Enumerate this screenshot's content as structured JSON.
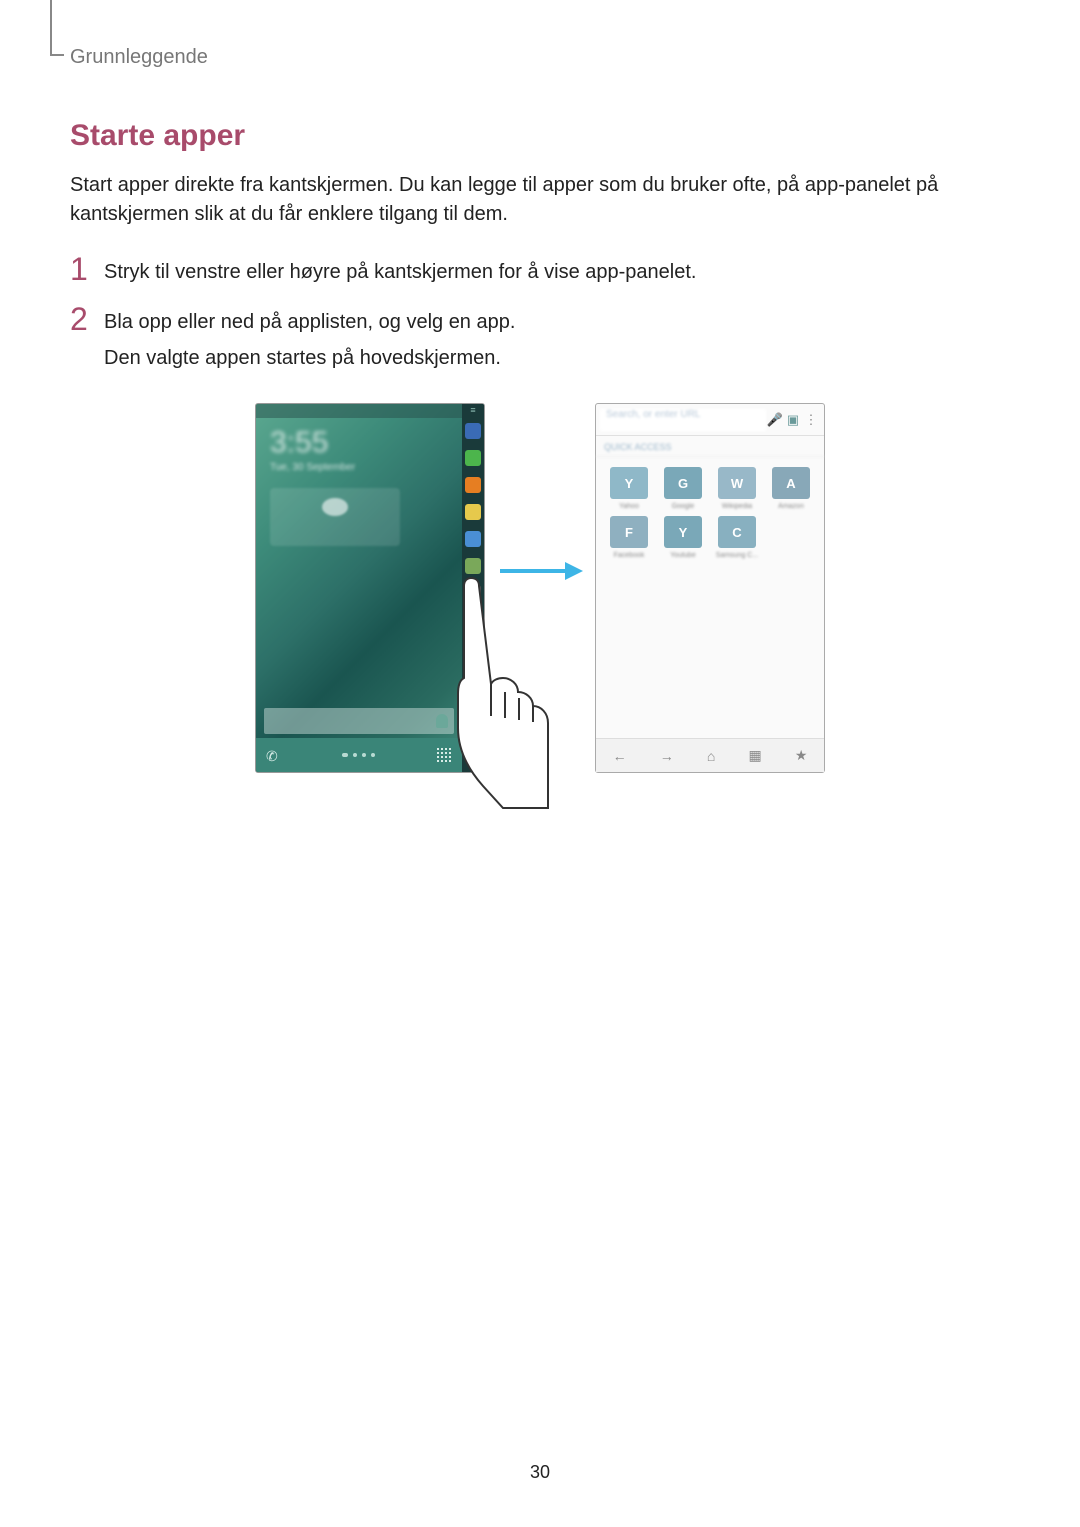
{
  "breadcrumb": "Grunnleggende",
  "title": "Starte apper",
  "intro": "Start apper direkte fra kantskjermen. Du kan legge til apper som du bruker ofte, på app-panelet på kantskjermen slik at du får enklere tilgang til dem.",
  "steps": [
    {
      "num": "1",
      "lines": [
        "Stryk til venstre eller høyre på kantskjermen for å vise app-panelet."
      ]
    },
    {
      "num": "2",
      "lines": [
        "Bla opp eller ned på applisten, og velg en app.",
        "Den valgte appen startes på hovedskjermen."
      ]
    }
  ],
  "left_phone": {
    "time": "3:55",
    "date": "Tue, 30 September",
    "edge_icons": [
      {
        "name": "star-icon",
        "class": "ic-star"
      },
      {
        "name": "phone-app-icon",
        "class": "ic-phone"
      },
      {
        "name": "contacts-app-icon",
        "class": "ic-contacts"
      },
      {
        "name": "messages-app-icon",
        "class": "ic-msg"
      },
      {
        "name": "browser-app-icon",
        "class": "ic-browser"
      },
      {
        "name": "gallery-app-icon",
        "class": "ic-gallery"
      },
      {
        "name": "play-app-icon",
        "class": "ic-play"
      }
    ]
  },
  "arrow_color": "#3db5e6",
  "right_browser": {
    "placeholder": "Search, or enter URL",
    "section_label": "QUICK ACCESS",
    "tiles": [
      {
        "letter": "Y",
        "label": "Yahoo",
        "color": "#8fb8c8"
      },
      {
        "letter": "G",
        "label": "Google",
        "color": "#7aa8b8"
      },
      {
        "letter": "W",
        "label": "Wikipedia",
        "color": "#98b8c8"
      },
      {
        "letter": "A",
        "label": "Amazon",
        "color": "#88a8b8"
      },
      {
        "letter": "F",
        "label": "Facebook",
        "color": "#8fb0c0"
      },
      {
        "letter": "Y",
        "label": "Youtube",
        "color": "#7aa8b8"
      },
      {
        "letter": "C",
        "label": "Samsung C...",
        "color": "#88b0c0"
      }
    ],
    "bottom_icons": [
      "←",
      "→",
      "⌂",
      "▦",
      "★"
    ]
  },
  "page_number": "30",
  "colors": {
    "title": "#a84b6b",
    "body": "#222222",
    "breadcrumb": "#777777"
  }
}
